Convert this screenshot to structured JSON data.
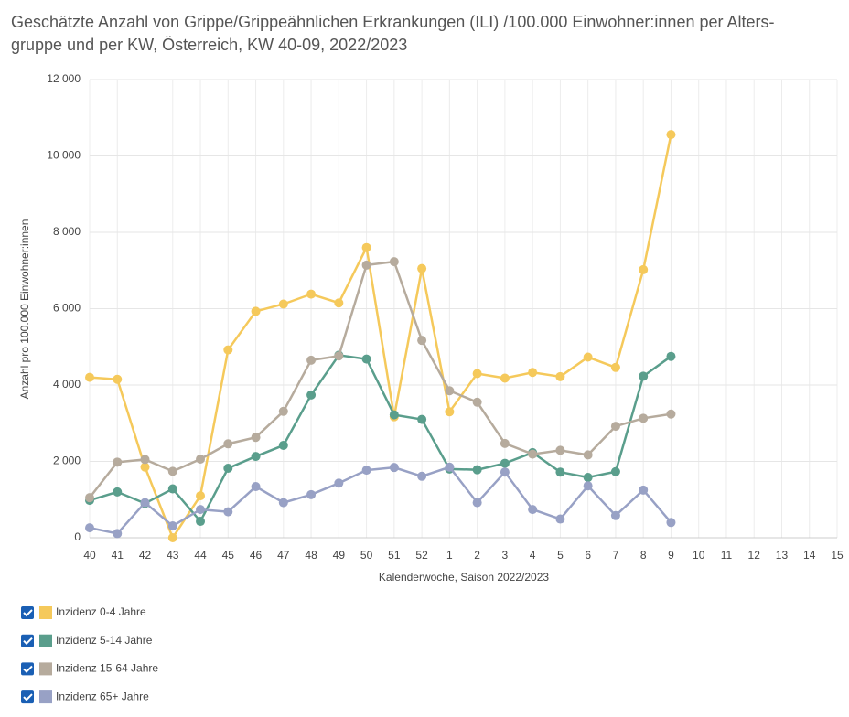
{
  "chart_data": {
    "type": "line",
    "title": [
      "Geschätzte Anzahl von Grippe/Grippeähnlichen Erkrankungen (ILI) /100.000 Einwohner:innen per Alters-",
      "gruppe und per KW, Österreich, KW 40-09, 2022/2023"
    ],
    "x_label": "Kalenderwoche, Saison 2022/2023",
    "y_label": "Anzahl pro 100.000 Einwohner:innen",
    "categories": [
      "40",
      "41",
      "42",
      "43",
      "44",
      "45",
      "46",
      "47",
      "48",
      "49",
      "50",
      "51",
      "52",
      "1",
      "2",
      "3",
      "4",
      "5",
      "6",
      "7",
      "8",
      "9",
      "10",
      "11",
      "12",
      "13",
      "14",
      "15"
    ],
    "ylim": [
      0,
      12000
    ],
    "yticks": [
      0,
      {
        "value": 2000,
        "label": "2 000"
      },
      {
        "value": 4000,
        "label": "4 000"
      },
      {
        "value": 6000,
        "label": "6 000"
      },
      {
        "value": 8000,
        "label": "8 000"
      },
      {
        "value": 10000,
        "label": "10 000"
      },
      {
        "value": 12000,
        "label": "12 000"
      }
    ],
    "grid": true,
    "series": [
      {
        "name": "Inzidenz 0-4 Jahre",
        "color": "#f5c95b",
        "values": [
          4200,
          4150,
          1850,
          0,
          1100,
          4920,
          5930,
          6120,
          6380,
          6150,
          7600,
          3170,
          7050,
          3300,
          4300,
          4180,
          4330,
          4220,
          4730,
          4460,
          7020,
          10560,
          null,
          null,
          null,
          null,
          null,
          null
        ]
      },
      {
        "name": "Inzidenz 5-14 Jahre",
        "color": "#5a9e8c",
        "values": [
          980,
          1200,
          900,
          1280,
          430,
          1820,
          2130,
          2420,
          3740,
          4780,
          4680,
          3220,
          3100,
          1800,
          1780,
          1950,
          2230,
          1720,
          1580,
          1730,
          4230,
          4750,
          null,
          null,
          null,
          null,
          null,
          null
        ]
      },
      {
        "name": "Inzidenz 15-64 Jahre",
        "color": "#b6ab9d",
        "values": [
          1050,
          1980,
          2050,
          1740,
          2060,
          2460,
          2630,
          3310,
          4650,
          4760,
          7140,
          7230,
          5170,
          3850,
          3550,
          2470,
          2190,
          2290,
          2170,
          2920,
          3130,
          3240,
          null,
          null,
          null,
          null,
          null,
          null
        ]
      },
      {
        "name": "Inzidenz 65+ Jahre",
        "color": "#98a1c5",
        "values": [
          260,
          110,
          920,
          310,
          740,
          680,
          1340,
          920,
          1130,
          1430,
          1770,
          1840,
          1610,
          1850,
          920,
          1720,
          740,
          490,
          1360,
          580,
          1250,
          400,
          null,
          null,
          null,
          null,
          null,
          null
        ]
      }
    ]
  }
}
